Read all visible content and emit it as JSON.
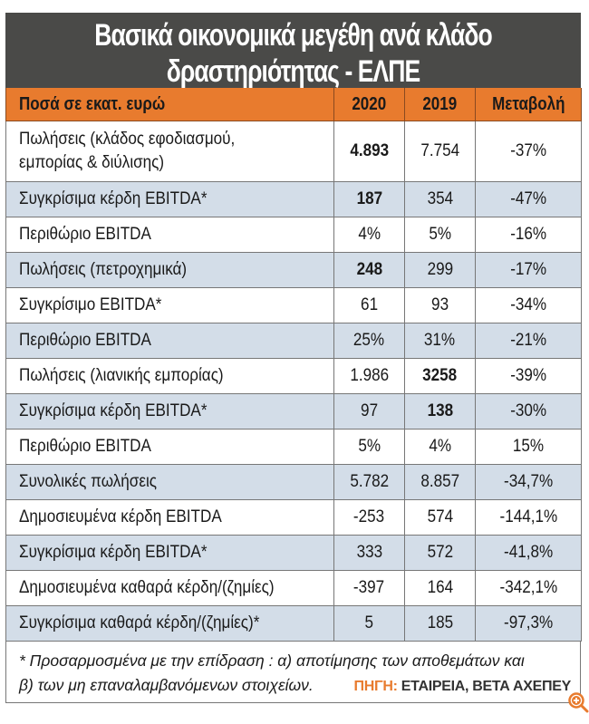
{
  "title": {
    "line1": "Βασικά οικονομικά μεγέθη ανά κλάδο",
    "line2": "δραστηριότητας - ΕΛΠΕ"
  },
  "table": {
    "headers": [
      "Ποσά σε εκατ. ευρώ",
      "2020",
      "2019",
      "Μεταβολή"
    ],
    "rows": [
      {
        "label": "Πωλήσεις (κλάδος εφοδιασμού, εμπορίας & διύλισης)",
        "y2020": "4.893",
        "y2019": "7.754",
        "change": "-37%",
        "bold2020": true,
        "bold2019": false
      },
      {
        "label": "Συγκρίσιμα κέρδη EBITDA*",
        "y2020": "187",
        "y2019": "354",
        "change": "-47%",
        "bold2020": true,
        "bold2019": false
      },
      {
        "label": "Περιθώριο EBITDA",
        "y2020": "4%",
        "y2019": "5%",
        "change": "-16%"
      },
      {
        "label": "Πωλήσεις (πετροχημικά)",
        "y2020": "248",
        "y2019": "299",
        "change": "-17%",
        "bold2020": true
      },
      {
        "label": "Συγκρίσιμο EBITDA*",
        "y2020": "61",
        "y2019": "93",
        "change": "-34%"
      },
      {
        "label": "Περιθώριο EBITDA",
        "y2020": "25%",
        "y2019": "31%",
        "change": "-21%"
      },
      {
        "label": "Πωλήσεις (λιανικής εμπορίας)",
        "y2020": "1.986",
        "y2019": "3258",
        "change": "-39%",
        "bold2019": true
      },
      {
        "label": "Συγκρίσιμα κέρδη EBITDA*",
        "y2020": "97",
        "y2019": "138",
        "change": "-30%",
        "bold2019": true
      },
      {
        "label": "Περιθώριο EBITDA",
        "y2020": "5%",
        "y2019": "4%",
        "change": "15%"
      },
      {
        "label": "Συνολικές πωλήσεις",
        "y2020": "5.782",
        "y2019": "8.857",
        "change": "-34,7%"
      },
      {
        "label": "Δημοσιευμένα κέρδη EBITDA",
        "y2020": "-253",
        "y2019": "574",
        "change": "-144,1%"
      },
      {
        "label": "Συγκρίσιμα κέρδη EBITDA*",
        "y2020": "333",
        "y2019": "572",
        "change": "-41,8%"
      },
      {
        "label": "Δημοσιευμένα καθαρά κέρδη/(ζημίες)",
        "y2020": "-397",
        "y2019": "164",
        "change": "-342,1%"
      },
      {
        "label": "Συγκρίσιμα καθαρά κέρδη/(ζημίες)*",
        "y2020": "5",
        "y2019": "185",
        "change": "-97,3%"
      }
    ]
  },
  "footnote": {
    "line1": "* Προσαρμοσμένα με την επίδραση : α) αποτίμησης των αποθεμάτων και",
    "line2": "β) των μη επαναλαμβανόμενων στοιχείων.",
    "source_key": "ΠΗΓΗ:",
    "source_value": " ΕΤΑΙΡΕΙΑ, ΒΕΤΑ ΑΧΕΠΕΥ"
  },
  "icons": {
    "zoom": "zoom-in-icon"
  },
  "colors": {
    "header_bg": "#4a4a48",
    "accent": "#e87b2e",
    "alt_row": "#d3dde8"
  }
}
